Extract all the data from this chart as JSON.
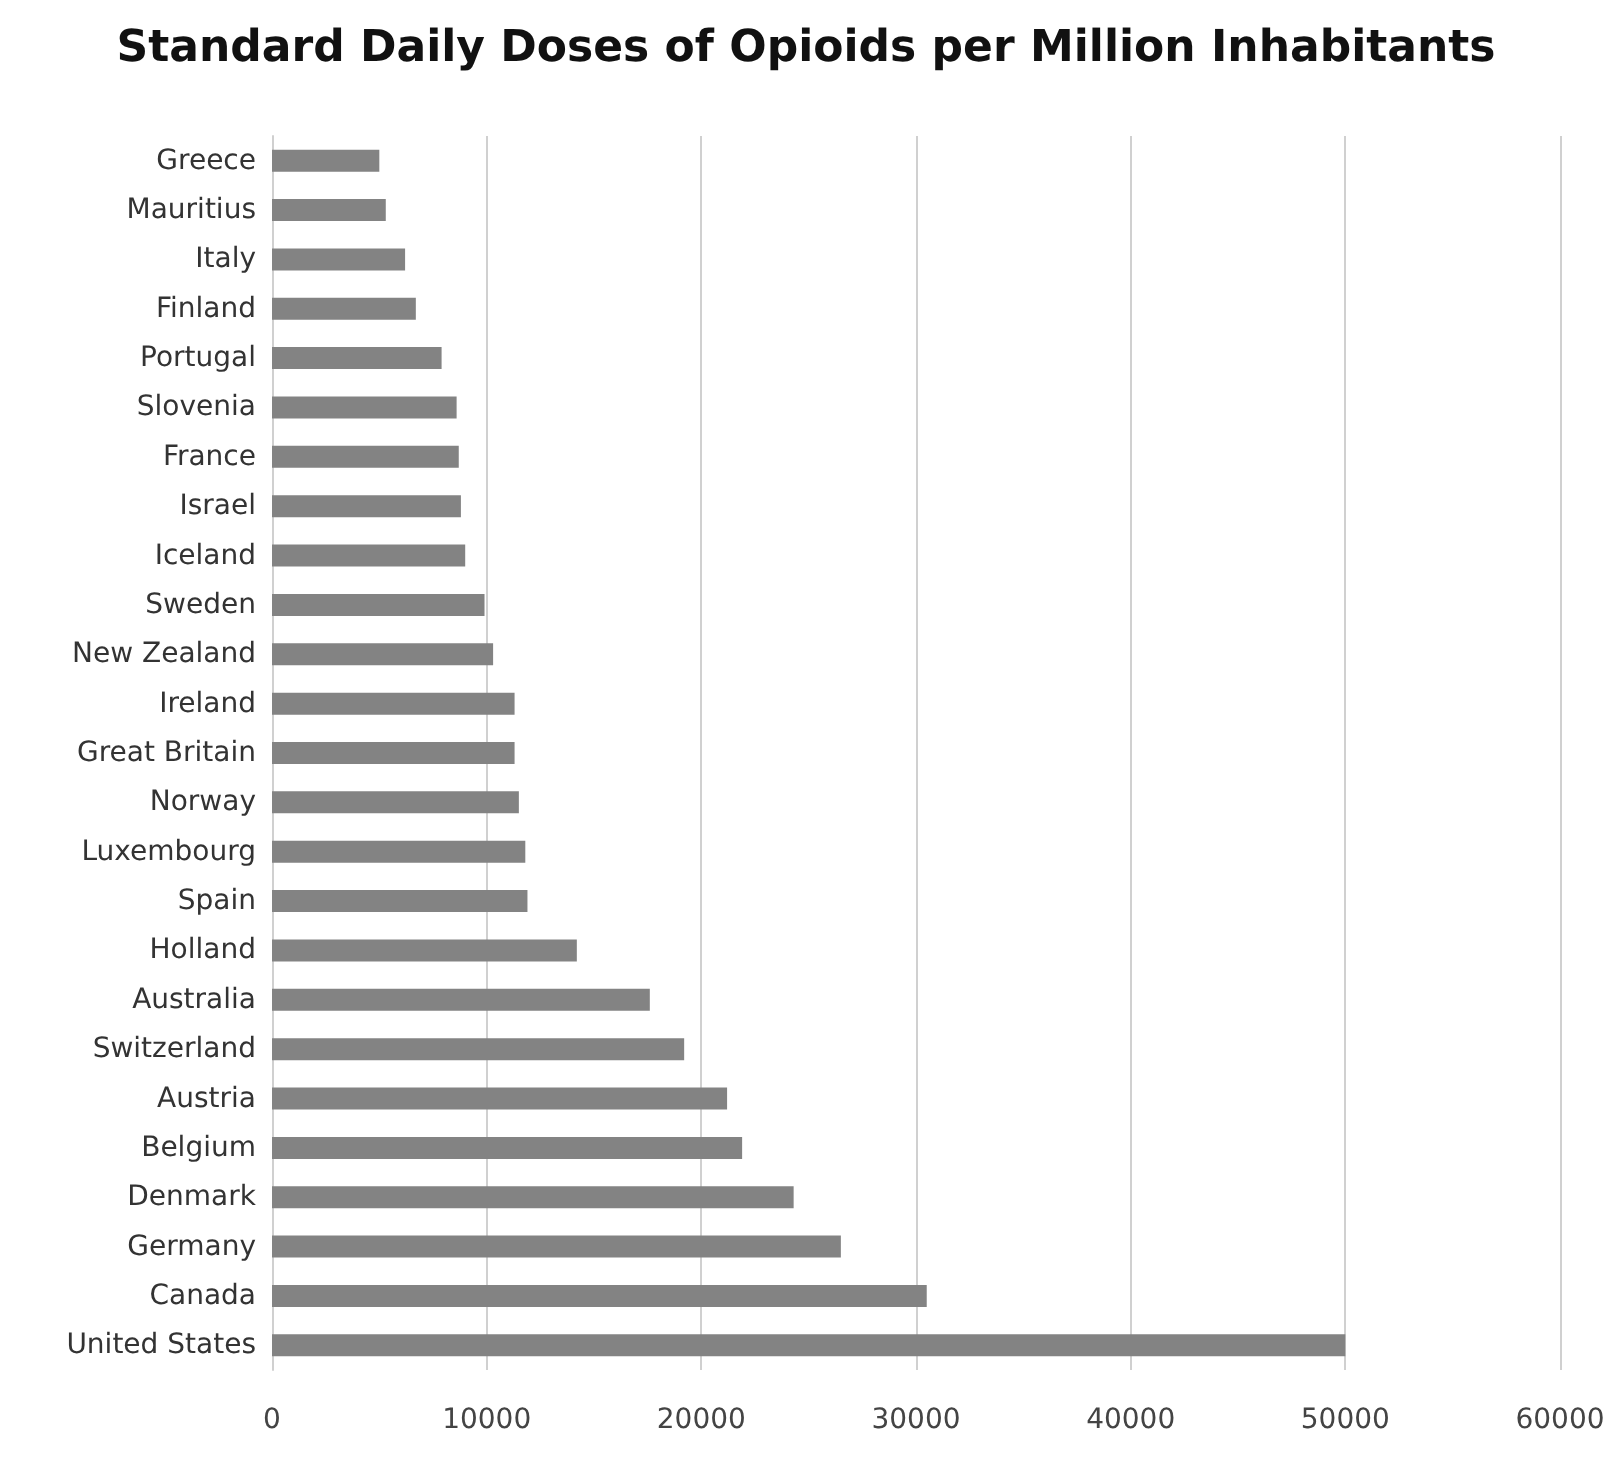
{
  "chart_data": {
    "type": "bar",
    "orientation": "horizontal",
    "title": "Standard Daily Doses of Opioids per Million Inhabitants",
    "categories": [
      "Greece",
      "Mauritius",
      "Italy",
      "Finland",
      "Portugal",
      "Slovenia",
      "France",
      "Israel",
      "Iceland",
      "Sweden",
      "New Zealand",
      "Ireland",
      "Great Britain",
      "Norway",
      "Luxembourg",
      "Spain",
      "Holland",
      "Australia",
      "Switzerland",
      "Austria",
      "Belgium",
      "Denmark",
      "Germany",
      "Canada",
      "United States"
    ],
    "values": [
      5000,
      5300,
      6200,
      6700,
      7900,
      8600,
      8700,
      8800,
      9000,
      9900,
      10300,
      11300,
      11300,
      11500,
      11800,
      11900,
      14200,
      17600,
      19200,
      21200,
      21900,
      24300,
      26500,
      30500,
      50000
    ],
    "color": "#838383",
    "xlim": [
      0,
      60000
    ],
    "xticks": [
      0,
      10000,
      20000,
      30000,
      40000,
      50000,
      60000
    ],
    "grid": "x"
  }
}
